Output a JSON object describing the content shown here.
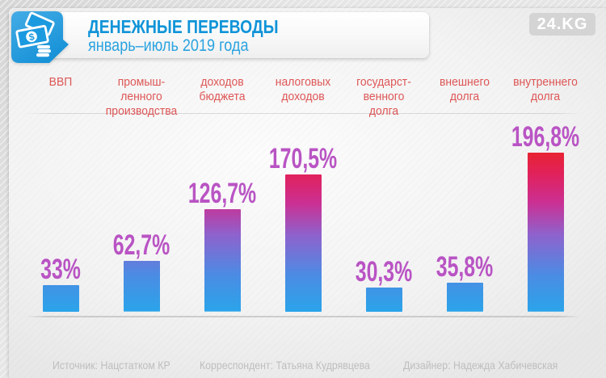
{
  "header": {
    "title": "ДЕНЕЖНЫЕ ПЕРЕВОДЫ",
    "subtitle": "январь–июль 2019 года",
    "brand": "24.KG",
    "icon": "money-transfer-icon",
    "title_color": "#1094d8",
    "subtitle_color": "#2aa3e0",
    "icon_bg_color": "#1b9ae0"
  },
  "chart_data": {
    "type": "bar",
    "title": "ДЕНЕЖНЫЕ ПЕРЕВОДЫ",
    "subtitle": "январь–июль 2019 года",
    "categories": [
      "ВВП",
      "промыш-\nленного\nпроизводства",
      "доходов\nбюджета",
      "налоговых\nдоходов",
      "государст-\nвенного\nдолга",
      "внешнего\nдолга",
      "внутреннего\nдолга"
    ],
    "values": [
      33,
      62.7,
      126.7,
      170.5,
      30.3,
      35.8,
      196.8
    ],
    "value_labels": [
      "33%",
      "62,7%",
      "126,7%",
      "170,5%",
      "30,3%",
      "35,8%",
      "196,8%"
    ],
    "unit": "%",
    "ylim": [
      0,
      200
    ],
    "grid": false,
    "legend": false,
    "bar_gradient_bottom_to_top": [
      "#2aa4ea",
      "#4b8ce4",
      "#8e62cd",
      "#cb3093",
      "#e1215c",
      "#e82430"
    ],
    "value_label_color": "#b954c4",
    "category_label_color": "#de5656"
  },
  "footer": {
    "source": "Источник: Нацстатком КР",
    "correspondent": "Корреспондент: Татьяна Кудрявцева",
    "designer": "Дизайнер: Надежда Хабичевская"
  }
}
